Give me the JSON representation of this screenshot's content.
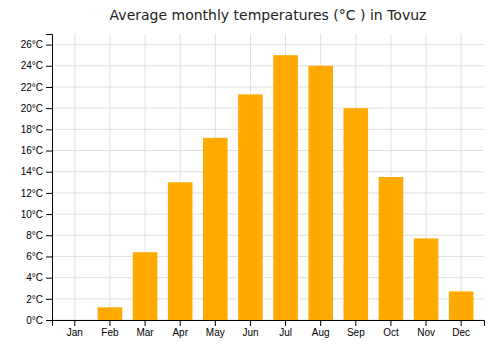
{
  "chart_data": {
    "type": "bar",
    "title": "Average monthly temperatures (°C ) in Tovuz",
    "categories": [
      "Jan",
      "Feb",
      "Mar",
      "Apr",
      "May",
      "Jun",
      "Jul",
      "Aug",
      "Sep",
      "Oct",
      "Nov",
      "Dec"
    ],
    "values": [
      0,
      1.2,
      6.4,
      13.0,
      17.2,
      21.3,
      25.0,
      24.0,
      20.0,
      13.5,
      7.7,
      2.7
    ],
    "color": "#FFAA00",
    "ylim": [
      0,
      27
    ],
    "yticks": [
      {
        "value": 0,
        "label": "0°C"
      },
      {
        "value": 2,
        "label": "2°C"
      },
      {
        "value": 4,
        "label": "4°C"
      },
      {
        "value": 6,
        "label": "6°C"
      },
      {
        "value": 8,
        "label": "8°C"
      },
      {
        "value": 10,
        "label": "10°C"
      },
      {
        "value": 12,
        "label": "12°C"
      },
      {
        "value": 14,
        "label": "14°C"
      },
      {
        "value": 16,
        "label": "16°C"
      },
      {
        "value": 18,
        "label": "18°C"
      },
      {
        "value": 20,
        "label": "20°C"
      },
      {
        "value": 22,
        "label": "22°C"
      },
      {
        "value": 24,
        "label": "24°C"
      },
      {
        "value": 26,
        "label": "26°C"
      }
    ],
    "grid": true
  }
}
